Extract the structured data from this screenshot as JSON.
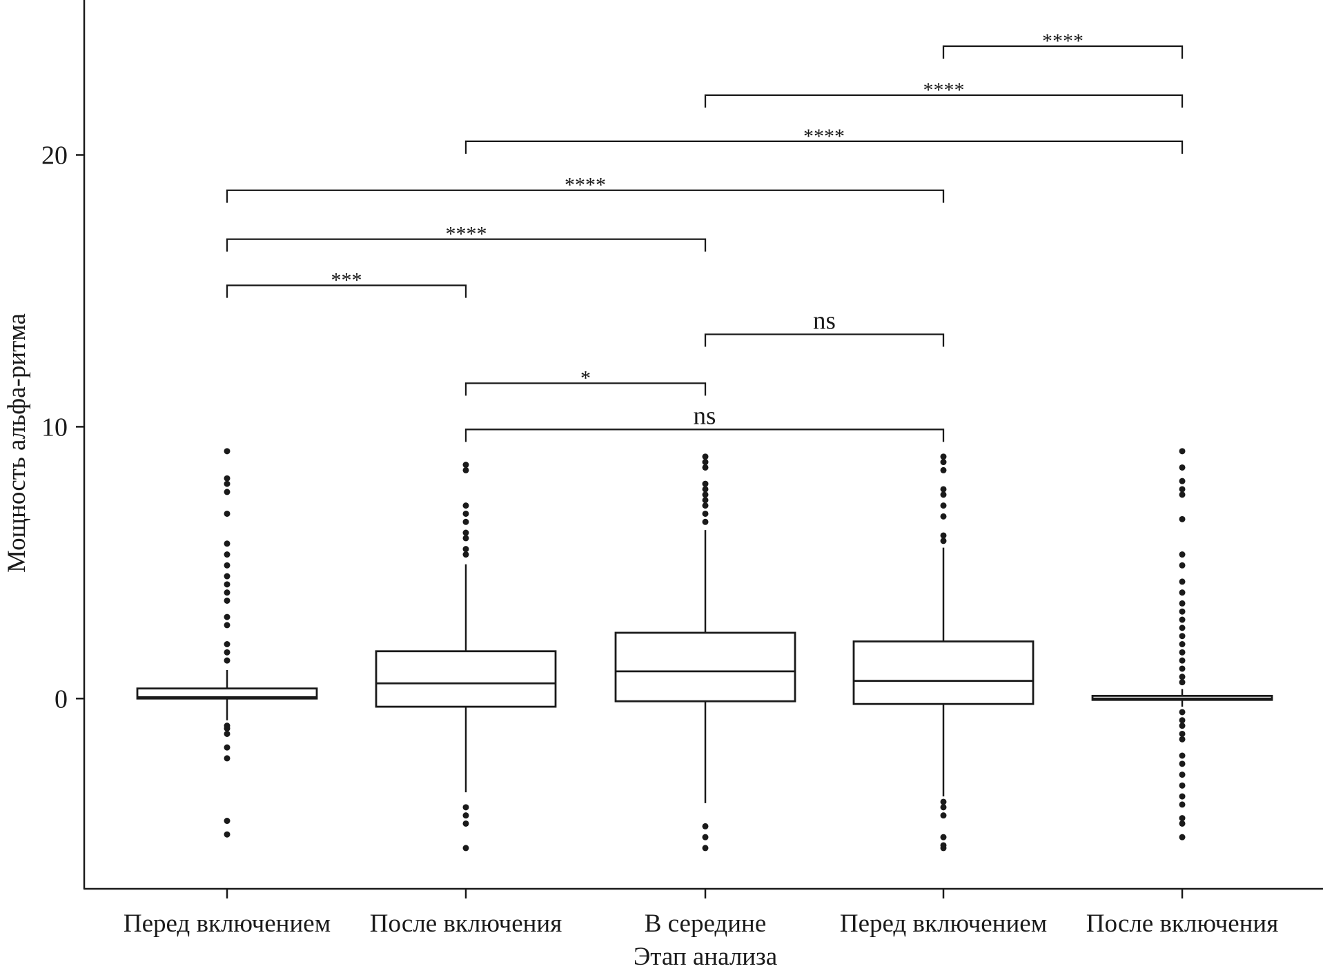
{
  "chart_data": {
    "type": "boxplot",
    "xlabel": "Этап анализа",
    "ylabel": "Мощность альфа-ритма",
    "ylim": [
      -7,
      25.7
    ],
    "yticks": [
      "0",
      "10",
      "20"
    ],
    "ytick_values": [
      0,
      10,
      20
    ],
    "grid": false,
    "categories": [
      "Перед включением",
      "После включения",
      "В середине",
      "Перед включением",
      "После включения"
    ],
    "boxes": [
      {
        "q1": 0.0,
        "median": 0.05,
        "q3": 0.37,
        "whisker_low": -0.8,
        "whisker_high": 1.05,
        "outliers": [
          9.1,
          8.1,
          7.9,
          7.6,
          6.8,
          5.7,
          5.3,
          4.9,
          4.5,
          4.2,
          3.9,
          3.6,
          3.0,
          2.7,
          2.0,
          1.7,
          1.4,
          -1.0,
          -1.1,
          -1.3,
          -1.8,
          -2.2,
          -4.5,
          -5.0
        ]
      },
      {
        "q1": -0.3,
        "median": 0.56,
        "q3": 1.74,
        "whisker_low": -3.45,
        "whisker_high": 4.94,
        "outliers": [
          8.6,
          8.4,
          7.1,
          6.8,
          6.5,
          6.1,
          5.9,
          5.5,
          5.3,
          -4.0,
          -4.3,
          -4.6,
          -5.5
        ]
      },
      {
        "q1": -0.1,
        "median": 1.0,
        "q3": 2.42,
        "whisker_low": -3.85,
        "whisker_high": 6.2,
        "outliers": [
          8.9,
          8.7,
          8.5,
          7.9,
          7.7,
          7.5,
          7.3,
          7.1,
          6.8,
          6.5,
          -4.7,
          -5.1,
          -5.5
        ]
      },
      {
        "q1": -0.2,
        "median": 0.65,
        "q3": 2.1,
        "whisker_low": -3.6,
        "whisker_high": 5.55,
        "outliers": [
          8.9,
          8.7,
          8.4,
          7.7,
          7.5,
          7.1,
          6.7,
          6.0,
          5.8,
          -3.8,
          -4.0,
          -4.3,
          -5.1,
          -5.4,
          -5.5
        ]
      },
      {
        "q1": -0.05,
        "median": 0.0,
        "q3": 0.1,
        "whisker_low": -0.3,
        "whisker_high": 0.35,
        "outliers": [
          9.1,
          8.5,
          8.0,
          7.7,
          7.5,
          6.6,
          5.3,
          4.9,
          4.3,
          3.9,
          3.5,
          3.2,
          2.9,
          2.6,
          2.3,
          2.0,
          1.7,
          1.4,
          1.1,
          0.8,
          0.6,
          -0.5,
          -0.8,
          -1.0,
          -1.3,
          -1.5,
          -2.1,
          -2.4,
          -2.8,
          -3.2,
          -3.6,
          -3.9,
          -4.4,
          -4.6,
          -5.1
        ]
      }
    ],
    "comparisons": [
      {
        "from": 1,
        "to": 2,
        "y": 15.2,
        "label": "***"
      },
      {
        "from": 1,
        "to": 3,
        "y": 16.9,
        "label": "****"
      },
      {
        "from": 1,
        "to": 4,
        "y": 18.7,
        "label": "****"
      },
      {
        "from": 2,
        "to": 5,
        "y": 20.5,
        "label": "****"
      },
      {
        "from": 3,
        "to": 5,
        "y": 22.2,
        "label": "****"
      },
      {
        "from": 4,
        "to": 5,
        "y": 24.0,
        "label": "****"
      },
      {
        "from": 2,
        "to": 3,
        "y": 11.6,
        "label": "*"
      },
      {
        "from": 3,
        "to": 4,
        "y": 13.4,
        "label": "ns"
      },
      {
        "from": 2,
        "to": 4,
        "y": 9.9,
        "label": "ns"
      }
    ],
    "colors": {
      "line": "#1a1a1a",
      "box_fill": "#ffffff"
    }
  }
}
